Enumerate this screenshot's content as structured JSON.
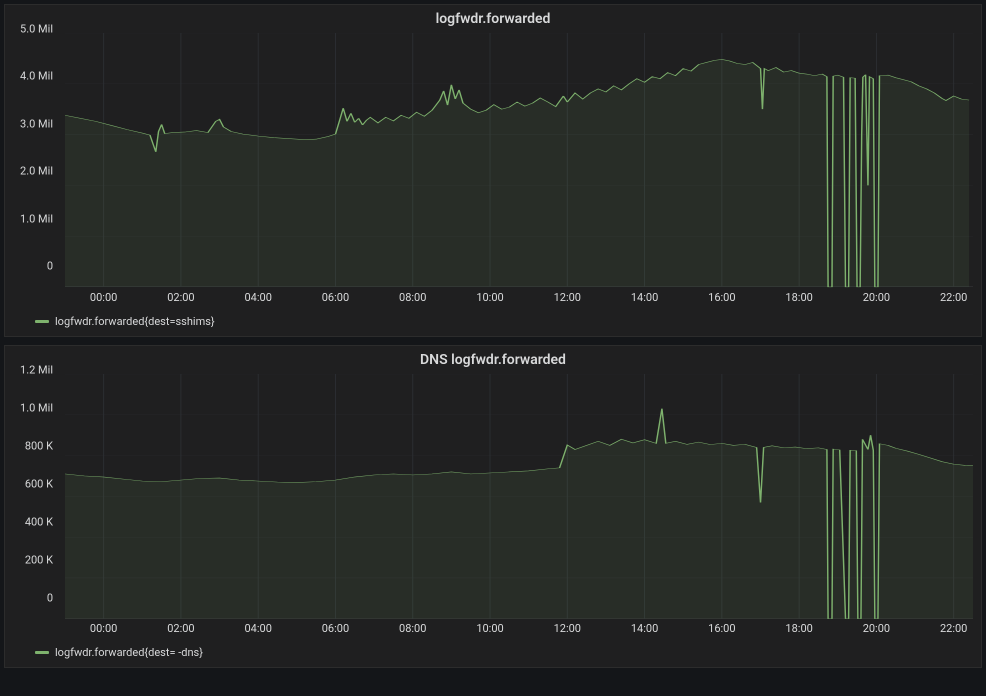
{
  "background_color": "#141619",
  "panel_bg": "#1f1f20",
  "grid_color": "#2c2f33",
  "axis_line_color": "#53565a",
  "text_color": "#d8d9da",
  "font_size_axis": 11,
  "font_size_title": 14,
  "panels": [
    {
      "title": "logfwdr.forwarded",
      "legend_label": "logfwdr.forwarded{dest=sshims}",
      "series_color": "#7eb26d",
      "fill_color": "#7eb26d",
      "ylim": [
        0,
        5000000
      ],
      "yticks": [
        0,
        1000000,
        2000000,
        3000000,
        4000000,
        5000000
      ],
      "ytick_labels": [
        "0",
        "1.0 Mil",
        "2.0 Mil",
        "3.0 Mil",
        "4.0 Mil",
        "5.0 Mil"
      ],
      "xlim": [
        -1,
        22.5
      ],
      "xticks": [
        0,
        2,
        4,
        6,
        8,
        10,
        12,
        14,
        16,
        18,
        20,
        22
      ],
      "xtick_labels": [
        "00:00",
        "02:00",
        "04:00",
        "06:00",
        "08:00",
        "10:00",
        "12:00",
        "14:00",
        "16:00",
        "18:00",
        "20:00",
        "22:00"
      ],
      "data": [
        [
          -1.0,
          3380000
        ],
        [
          -0.6,
          3320000
        ],
        [
          -0.2,
          3260000
        ],
        [
          0.2,
          3180000
        ],
        [
          0.6,
          3100000
        ],
        [
          1.0,
          3030000
        ],
        [
          1.2,
          2990000
        ],
        [
          1.35,
          2660000
        ],
        [
          1.42,
          3060000
        ],
        [
          1.5,
          3200000
        ],
        [
          1.58,
          3020000
        ],
        [
          1.8,
          3040000
        ],
        [
          2.1,
          3050000
        ],
        [
          2.4,
          3080000
        ],
        [
          2.7,
          3040000
        ],
        [
          2.9,
          3260000
        ],
        [
          3.0,
          3300000
        ],
        [
          3.1,
          3150000
        ],
        [
          3.3,
          3060000
        ],
        [
          3.6,
          3010000
        ],
        [
          4.0,
          2970000
        ],
        [
          4.4,
          2940000
        ],
        [
          4.8,
          2920000
        ],
        [
          5.2,
          2900000
        ],
        [
          5.5,
          2910000
        ],
        [
          5.8,
          2960000
        ],
        [
          6.0,
          3010000
        ],
        [
          6.1,
          3260000
        ],
        [
          6.2,
          3520000
        ],
        [
          6.3,
          3260000
        ],
        [
          6.4,
          3420000
        ],
        [
          6.5,
          3240000
        ],
        [
          6.6,
          3320000
        ],
        [
          6.7,
          3190000
        ],
        [
          6.8,
          3280000
        ],
        [
          6.9,
          3340000
        ],
        [
          7.1,
          3230000
        ],
        [
          7.3,
          3340000
        ],
        [
          7.5,
          3270000
        ],
        [
          7.7,
          3380000
        ],
        [
          7.9,
          3320000
        ],
        [
          8.1,
          3440000
        ],
        [
          8.3,
          3360000
        ],
        [
          8.5,
          3480000
        ],
        [
          8.7,
          3680000
        ],
        [
          8.8,
          3860000
        ],
        [
          8.9,
          3580000
        ],
        [
          9.0,
          3980000
        ],
        [
          9.1,
          3700000
        ],
        [
          9.2,
          3880000
        ],
        [
          9.3,
          3620000
        ],
        [
          9.5,
          3500000
        ],
        [
          9.7,
          3430000
        ],
        [
          9.9,
          3480000
        ],
        [
          10.1,
          3590000
        ],
        [
          10.3,
          3500000
        ],
        [
          10.5,
          3540000
        ],
        [
          10.7,
          3640000
        ],
        [
          10.9,
          3560000
        ],
        [
          11.1,
          3620000
        ],
        [
          11.3,
          3720000
        ],
        [
          11.5,
          3640000
        ],
        [
          11.7,
          3550000
        ],
        [
          11.9,
          3760000
        ],
        [
          12.0,
          3640000
        ],
        [
          12.2,
          3820000
        ],
        [
          12.4,
          3700000
        ],
        [
          12.6,
          3820000
        ],
        [
          12.8,
          3900000
        ],
        [
          13.0,
          3840000
        ],
        [
          13.2,
          3960000
        ],
        [
          13.4,
          3880000
        ],
        [
          13.6,
          4000000
        ],
        [
          13.8,
          4100000
        ],
        [
          14.0,
          4030000
        ],
        [
          14.2,
          4140000
        ],
        [
          14.4,
          4100000
        ],
        [
          14.6,
          4220000
        ],
        [
          14.8,
          4160000
        ],
        [
          15.0,
          4300000
        ],
        [
          15.2,
          4250000
        ],
        [
          15.4,
          4380000
        ],
        [
          15.6,
          4420000
        ],
        [
          15.8,
          4460000
        ],
        [
          16.0,
          4480000
        ],
        [
          16.2,
          4450000
        ],
        [
          16.4,
          4400000
        ],
        [
          16.6,
          4380000
        ],
        [
          16.8,
          4420000
        ],
        [
          17.0,
          4300000
        ],
        [
          17.05,
          3500000
        ],
        [
          17.1,
          4300000
        ],
        [
          17.2,
          4260000
        ],
        [
          17.4,
          4320000
        ],
        [
          17.6,
          4230000
        ],
        [
          17.8,
          4260000
        ],
        [
          18.0,
          4210000
        ],
        [
          18.2,
          4190000
        ],
        [
          18.4,
          4160000
        ],
        [
          18.6,
          4190000
        ],
        [
          18.72,
          4140000
        ],
        [
          18.75,
          0
        ],
        [
          18.85,
          0
        ],
        [
          18.88,
          4150000
        ],
        [
          19.0,
          4170000
        ],
        [
          19.15,
          4130000
        ],
        [
          19.2,
          0
        ],
        [
          19.28,
          0
        ],
        [
          19.32,
          4120000
        ],
        [
          19.45,
          4110000
        ],
        [
          19.5,
          0
        ],
        [
          19.58,
          0
        ],
        [
          19.62,
          3000000
        ],
        [
          19.65,
          4130000
        ],
        [
          19.72,
          4180000
        ],
        [
          19.78,
          2000000
        ],
        [
          19.82,
          4140000
        ],
        [
          19.92,
          4100000
        ],
        [
          19.96,
          0
        ],
        [
          20.04,
          0
        ],
        [
          20.08,
          4160000
        ],
        [
          20.3,
          4170000
        ],
        [
          20.5,
          4120000
        ],
        [
          20.7,
          4080000
        ],
        [
          20.9,
          4040000
        ],
        [
          21.1,
          3960000
        ],
        [
          21.3,
          3900000
        ],
        [
          21.5,
          3820000
        ],
        [
          21.7,
          3710000
        ],
        [
          21.8,
          3670000
        ],
        [
          22.0,
          3760000
        ],
        [
          22.2,
          3700000
        ],
        [
          22.4,
          3680000
        ]
      ]
    },
    {
      "title": "DNS logfwdr.forwarded",
      "legend_label": "logfwdr.forwarded{dest=      -dns}",
      "series_color": "#7eb26d",
      "fill_color": "#7eb26d",
      "ylim": [
        0,
        1200000
      ],
      "yticks": [
        0,
        200000,
        400000,
        600000,
        800000,
        1000000,
        1200000
      ],
      "ytick_labels": [
        "0",
        "200 K",
        "400 K",
        "600 K",
        "800 K",
        "1.0 Mil",
        "1.2 Mil"
      ],
      "xlim": [
        -1,
        22.5
      ],
      "xticks": [
        0,
        2,
        4,
        6,
        8,
        10,
        12,
        14,
        16,
        18,
        20,
        22
      ],
      "xtick_labels": [
        "00:00",
        "02:00",
        "04:00",
        "06:00",
        "08:00",
        "10:00",
        "12:00",
        "14:00",
        "16:00",
        "18:00",
        "20:00",
        "22:00"
      ],
      "data": [
        [
          -1.0,
          710000
        ],
        [
          -0.5,
          700000
        ],
        [
          0.0,
          695000
        ],
        [
          0.5,
          685000
        ],
        [
          1.0,
          675000
        ],
        [
          1.5,
          672000
        ],
        [
          2.0,
          680000
        ],
        [
          2.5,
          688000
        ],
        [
          3.0,
          690000
        ],
        [
          3.5,
          680000
        ],
        [
          4.0,
          675000
        ],
        [
          4.5,
          670000
        ],
        [
          5.0,
          668000
        ],
        [
          5.5,
          672000
        ],
        [
          6.0,
          680000
        ],
        [
          6.5,
          695000
        ],
        [
          7.0,
          705000
        ],
        [
          7.5,
          710000
        ],
        [
          8.0,
          705000
        ],
        [
          8.5,
          710000
        ],
        [
          9.0,
          720000
        ],
        [
          9.5,
          710000
        ],
        [
          10.0,
          715000
        ],
        [
          10.5,
          720000
        ],
        [
          11.0,
          725000
        ],
        [
          11.5,
          735000
        ],
        [
          11.8,
          740000
        ],
        [
          12.0,
          852000
        ],
        [
          12.2,
          830000
        ],
        [
          12.5,
          850000
        ],
        [
          12.8,
          870000
        ],
        [
          13.1,
          850000
        ],
        [
          13.4,
          880000
        ],
        [
          13.7,
          862000
        ],
        [
          14.0,
          878000
        ],
        [
          14.3,
          860000
        ],
        [
          14.45,
          1030000
        ],
        [
          14.55,
          860000
        ],
        [
          14.8,
          870000
        ],
        [
          15.1,
          855000
        ],
        [
          15.4,
          866000
        ],
        [
          15.7,
          854000
        ],
        [
          16.0,
          860000
        ],
        [
          16.3,
          850000
        ],
        [
          16.6,
          855000
        ],
        [
          16.9,
          840000
        ],
        [
          17.0,
          570000
        ],
        [
          17.08,
          840000
        ],
        [
          17.3,
          848000
        ],
        [
          17.6,
          838000
        ],
        [
          17.9,
          842000
        ],
        [
          18.2,
          834000
        ],
        [
          18.5,
          838000
        ],
        [
          18.72,
          830000
        ],
        [
          18.75,
          0
        ],
        [
          18.85,
          0
        ],
        [
          18.88,
          832000
        ],
        [
          19.05,
          828000
        ],
        [
          19.2,
          0
        ],
        [
          19.28,
          0
        ],
        [
          19.32,
          826000
        ],
        [
          19.48,
          824000
        ],
        [
          19.52,
          0
        ],
        [
          19.6,
          0
        ],
        [
          19.64,
          880000
        ],
        [
          19.78,
          830000
        ],
        [
          19.85,
          900000
        ],
        [
          19.92,
          826000
        ],
        [
          19.96,
          0
        ],
        [
          20.04,
          0
        ],
        [
          20.08,
          858000
        ],
        [
          20.3,
          850000
        ],
        [
          20.5,
          836000
        ],
        [
          20.8,
          822000
        ],
        [
          21.1,
          806000
        ],
        [
          21.4,
          788000
        ],
        [
          21.7,
          770000
        ],
        [
          22.0,
          758000
        ],
        [
          22.3,
          752000
        ],
        [
          22.5,
          750000
        ]
      ]
    }
  ]
}
